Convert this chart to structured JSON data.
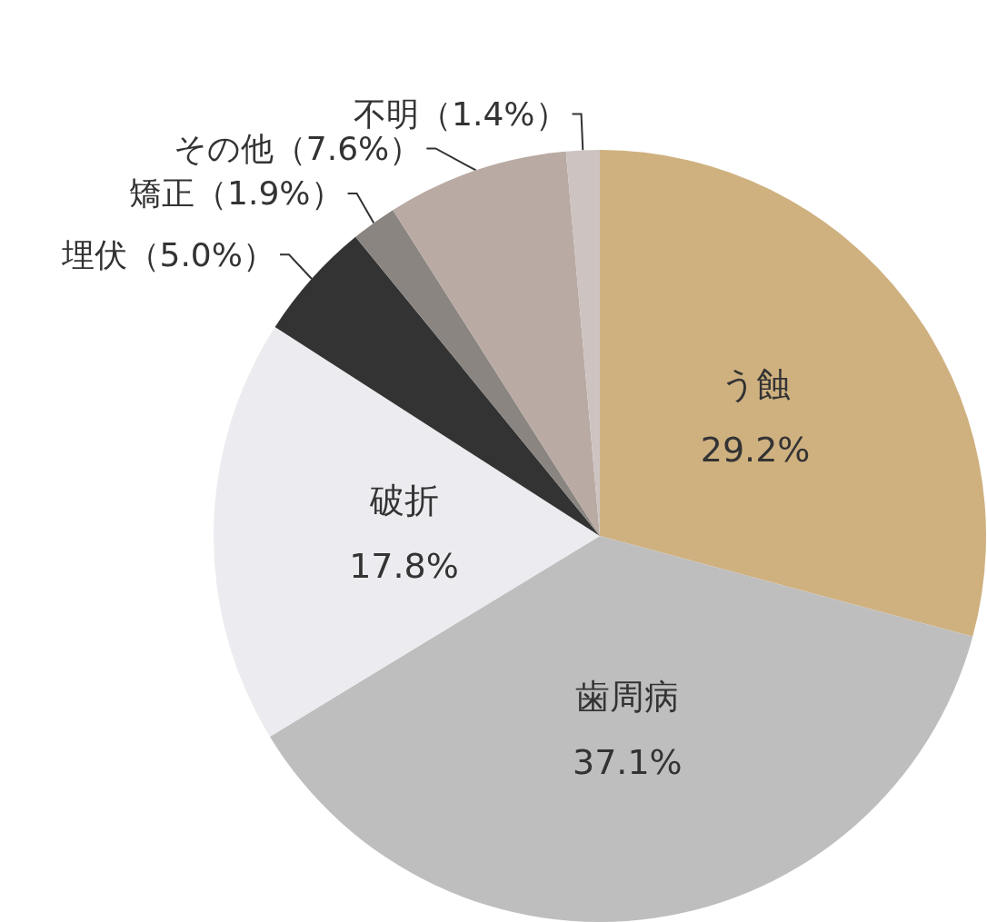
{
  "chart_data": {
    "type": "pie",
    "categories": [
      "う蝕",
      "歯周病",
      "破折",
      "埋伏",
      "矯正",
      "その他",
      "不明"
    ],
    "values": [
      29.2,
      37.1,
      17.8,
      5.0,
      1.9,
      7.6,
      1.4
    ],
    "value_labels": [
      "29.2%",
      "37.1%",
      "17.8%",
      "（5.0%）",
      "（1.9%）",
      "（7.6%）",
      "（1.4%）"
    ],
    "colors": [
      "#cfb180",
      "#bfbebe",
      "#ecebef",
      "#333333",
      "#8a8581",
      "#b9aaa3",
      "#cdc3c1"
    ]
  }
}
